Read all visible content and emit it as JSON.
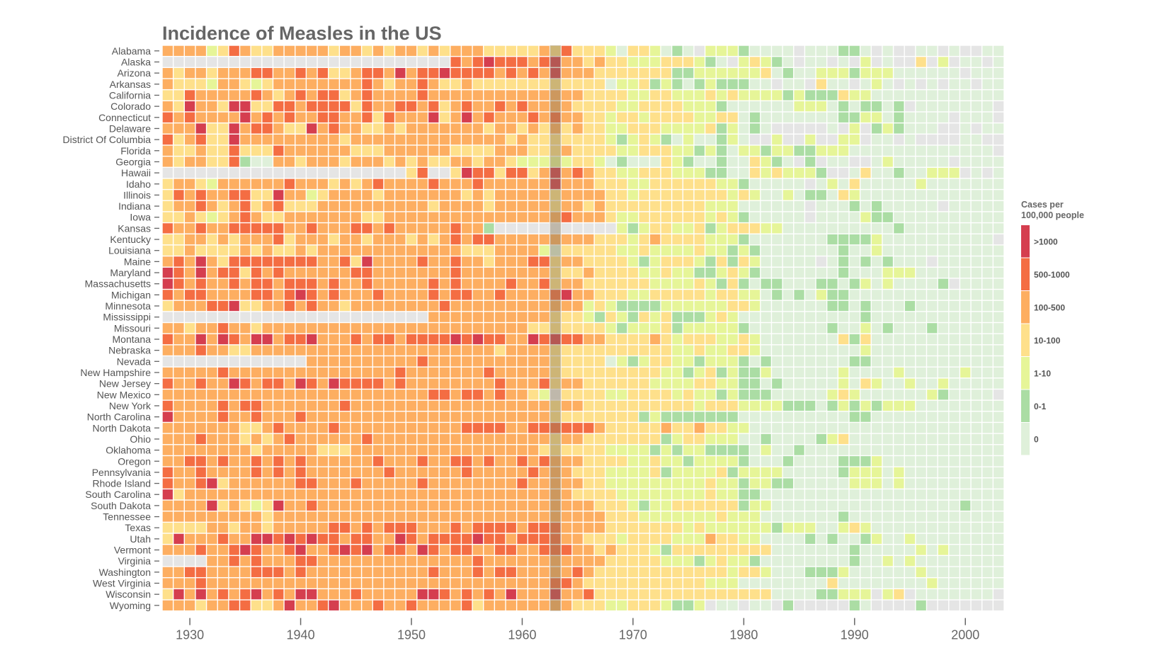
{
  "chart_data": {
    "type": "heatmap",
    "title": "Incidence of Measles in the US",
    "x_tick_labels": [
      "1930",
      "1940",
      "1950",
      "1960",
      "1970",
      "1980",
      "1990",
      "2000"
    ],
    "years": [
      1928,
      2003
    ],
    "highlight_year": 1963,
    "legend": {
      "title_line1": "Cases per",
      "title_line2": "100,000 people",
      "placement": "right",
      "levels": [
        "0",
        "0-1",
        "1-10",
        "10-100",
        "100-500",
        "500-1000",
        ">1000"
      ],
      "colors": [
        "#dff0da",
        "#abdda4",
        "#e6f598",
        "#fee08b",
        "#fdae61",
        "#f46d43",
        "#d53e4f"
      ],
      "missing_color": "#e5e5e5"
    },
    "states": [
      {
        "name": "Alabama",
        "levels": "44442354334444434434344343444333334353332033201 0-222 10000-0001 10-0--00-0--00"
      },
      {
        "name": "Alaska",
        "levels": "--------------------------54565554564434332223332 10-23210-00-0-2-0--3-2-00-0"
      },
      {
        "name": "Arizona",
        "levels": "43443444554454533455464556555545454644433333331122222230100222122200000 0-000"
      },
      {
        "name": "Arkansas",
        "levels": "4333244323444444445434454334333333333333022312101211100-00-300-020-0-0-00-00"
      },
      {
        "name": "California",
        "levels": "3354444454345455345444454444444444444433332233222323222212111322000 0000000000"
      },
      {
        "name": "Colorado",
        "levels": "4364436633554555535445545345445454444333322333322210000002220101101-0000000"
      },
      {
        "name": "Connecticut",
        "levels": "54544446454544554453544463464544454544332332333322330100000001122010000-000"
      },
      {
        "name": "Delaware",
        "levels": "4446336455433645443343444444434434343433223332222312010-----0-2-121000--0-00"
      },
      {
        "name": "District Of Columbia",
        "levels": "5345336444444444344444444444444343333333212321020012 0--2--2--22-00-0----00--"
      },
      {
        "name": "Florida",
        "levels": "433433533354444443334444443333444333433332233322121022122112220000000000000"
      },
      {
        "name": "Georgia",
        "levels": "4344335100443444344434343344344322222332010003210010032 10-1-00--0200000-0000"
      },
      {
        "name": "Hawaii",
        "levels": "----------------------35--3655355346454332233322211003232221--03001002 22-0-0"
      },
      {
        "name": "Idaho",
        "levels": "3443244444454443434544445444544444464443332233333322100000-0203000002000 0000"
      },
      {
        "name": "Illinois",
        "levels": "3545445533644234444344444443434444434444332333333332320020110320000000000000"
      },
      {
        "name": "Indiana",
        "levels": "3445434534533344444444443444434444434434333333333222000000-0001010 0000-00000"
      },
      {
        "name": "Iowa",
        "levels": "3343234543344444443344444444444444445444322333333232100000-00002110000000000"
      },
      {
        "name": "Kansas",
        "levels": "54454455555445444554544444544 1-----------21233223123332200000000001000000000"
      },
      {
        "name": "Kentucky",
        "levels": "33443434445344434434443434545544444444433323433332221000000011112000000 0000"
      },
      {
        "name": "Louisiana",
        "levels": "3343333434334344444444444443334444203333322322223221210000000100200000000000"
      },
      {
        "name": "Maine",
        "levels": "45464355555555445364444544544344455344333321233321313200000-0101010 00-0000000"
      },
      {
        "name": "Maryland",
        "levels": "6546455354544444455444444454444444433343333223221123210000000100022 200000000 0"
      },
      {
        "name": "Massachusetts",
        "levels": "6545445455455545445444445454444544534433333322223213101100011012020 0001-00000"
      },
      {
        "name": "Michigan",
        "levels": "5455444455456545444544445455445444456443332233333233220101021100000000000000"
      },
      {
        "name": "Minnesota",
        "levels": "3444556334454544344444444544444444444423211112222223320000001101000100000000 0"
      },
      {
        "name": "Mississippi",
        "levels": "------------------------444444444443332132132311123200000000000100000000000 0"
      },
      {
        "name": "Missouri",
        "levels": "4434454434444444444444444444444443333333212223122222100000001002010 0010000000"
      },
      {
        "name": "Montana",
        "levels": "54464654664556444545545555656554465655443333432333223200000003130000000000000"
      },
      {
        "name": "Nebraska",
        "levels": "444544334444444444444444444444344443333333333322322332000000000200000000000 0"
      },
      {
        "name": "Nevada",
        "levels": "-------------444444444454444444444433333021233221222101000000011000000000000"
      },
      {
        "name": "New Hampshire",
        "levels": "4444454444444444444445444444454444433333333332212312112000000200002000002000"
      },
      {
        "name": "New Jersey",
        "levels": "5445446545546546555545444444445444534433333322223322110100000203200200200000"
      },
      {
        "name": "New Mexico",
        "levels": "444444444444444444444444554554544 32-333322333323221211100000232000000210000"
      },
      {
        "name": "New York",
        "levels": "54444545544444445444444444444444444344333333333323332222111012121222000000000"
      },
      {
        "name": "North Carolina",
        "levels": "6444454454445444444444444444444444433333333121111111000000000011000000000000"
      },
      {
        "name": "North Dakota",
        "levels": "444444433454444544444444444555544555555433333433433220000000000000000000000 0"
      },
      {
        "name": "Ohio",
        "levels": "44454443434544444454444444444444444344333333312332220010000123000000000000000"
      },
      {
        "name": "Oklahoma",
        "levels": "4444444434444433344444444444444444333333222212122111102001000000000000000000"
      },
      {
        "name": "Oregon",
        "levels": "4455454454545444444544454455454454544433332232212222100010000111200000000000 0"
      },
      {
        "name": "Pennsylvania",
        "levels": "5445444454545444444454444445444445444333222231222231222200000122202000000000"
      },
      {
        "name": "Rhode Island",
        "levels": "5445634444445544454444454444444454444433222222222322122110000022202000000000"
      },
      {
        "name": "South Carolina",
        "levels": "6344444444444444444444444444444444444333322222222322110000000000000000000000"
      },
      {
        "name": "South Dakota",
        "levels": "4444634323644544444444444444444444444443332122333333122000000000000000001000"
      },
      {
        "name": "Tennessee",
        "levels": "4444444443444444444444444444444444444444333222222232220000000100000000000000"
      },
      {
        "name": "Texas",
        "levels": "3333443443444445545455544454555545554444333333323222222122200232000000000000"
      },
      {
        "name": "Utah",
        "levels": "3644454466565655455446545555655455554433323333222433220000101001200200000000"
      },
      {
        "name": "Vermont",
        "levels": "4445445654456445656455465455445544555443433321333333333000000010000020200000"
      },
      {
        "name": "Virginia",
        "levels": "----44545444554444444444444454444444444433333222123221000000001002020000000000"
      },
      {
        "name": "Washington",
        "levels": "4455444455545444444444445444545544444543333333333332332000111200000020000000"
      },
      {
        "name": "West Virginia",
        "levels": "44454444444444444444444444444444444554333333333332220000000030000000020000000"
      },
      {
        "name": "Wisconsin",
        "levels": "3646454564546644454444466545454644464453333333333333333000011222-23-0000000----"
      },
      {
        "name": "Wyoming",
        "levels": "44434455334644564445445444453444444443332233321 12-00-00-1-----10----1------"
      }
    ]
  }
}
